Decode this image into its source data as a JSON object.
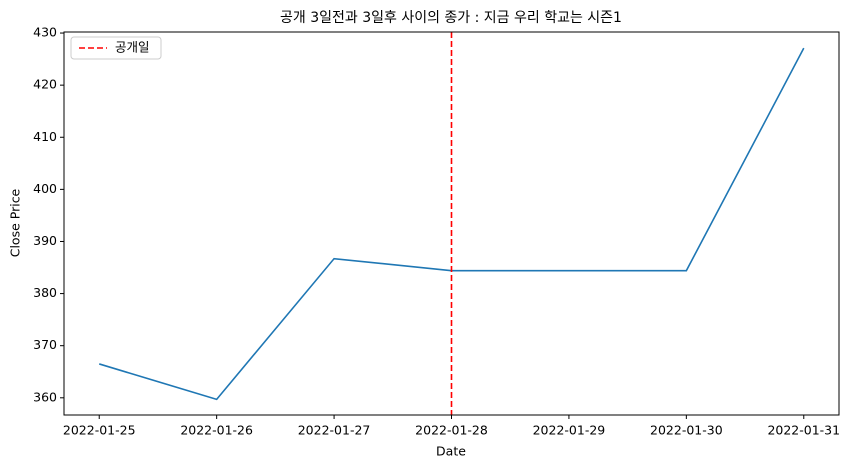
{
  "chart_data": {
    "type": "line",
    "title": "공개 3일전과 3일후 사이의 종가 : 지금 우리 학교는 시즌1",
    "x_label": "Date",
    "y_label": "Close Price",
    "x": [
      "2022-01-25",
      "2022-01-26",
      "2022-01-27",
      "2022-01-28",
      "2022-01-29",
      "2022-01-30",
      "2022-01-31"
    ],
    "series": [
      {
        "color": "#1f77b4",
        "values": [
          366.5,
          359.7,
          386.7,
          384.4,
          384.4,
          384.4,
          427.1
        ]
      }
    ],
    "xticks": [
      "2022-01-25",
      "2022-01-26",
      "2022-01-27",
      "2022-01-28",
      "2022-01-29",
      "2022-01-30",
      "2022-01-31"
    ],
    "ylim": [
      356.7,
      430.2
    ],
    "yticks": [
      360,
      370,
      380,
      390,
      400,
      410,
      420,
      430
    ],
    "vlines": [
      {
        "x": "2022-01-28",
        "name": "공개일",
        "color": "#ff0000"
      }
    ],
    "grid": false,
    "legend": "upper-left"
  }
}
